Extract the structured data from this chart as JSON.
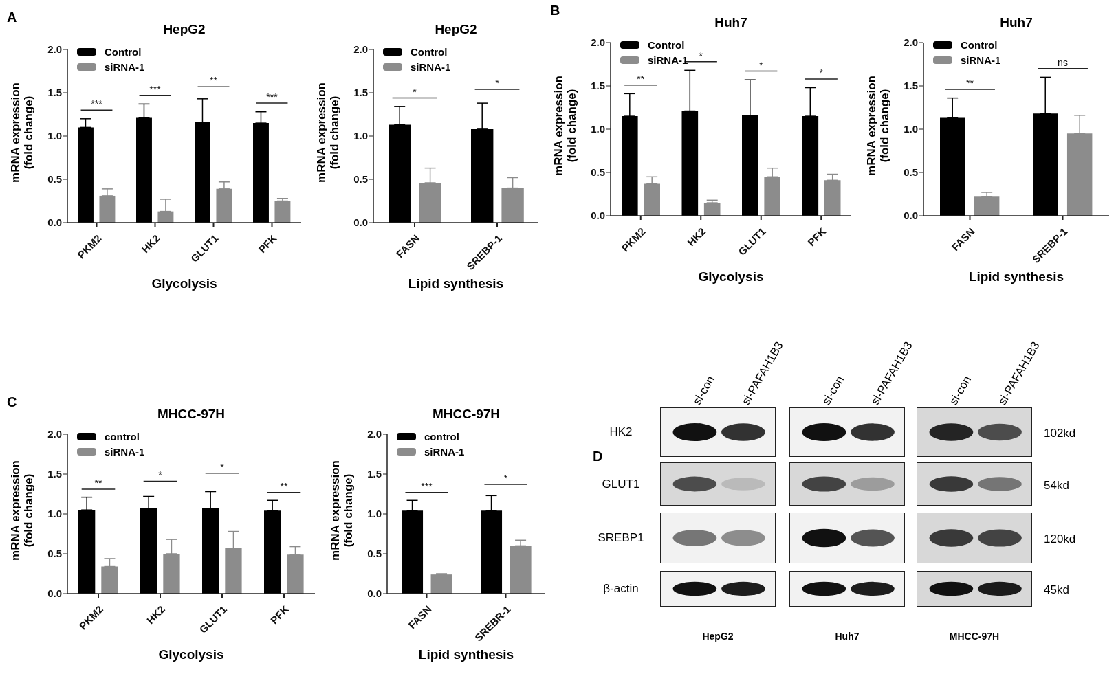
{
  "chart_data": [
    {
      "type": "bar",
      "title": "HepG2",
      "xlabel": "Glycolysis",
      "ylabel": "mRNA expression (fold change)",
      "categories": [
        "PKM2",
        "HK2",
        "GLUT1",
        "PFK"
      ],
      "series": [
        {
          "name": "Control",
          "color": "#000000",
          "values": [
            1.1,
            1.21,
            1.16,
            1.15
          ],
          "errors": [
            [
              1.1,
              1.2
            ],
            [
              1.21,
              1.37
            ],
            [
              1.16,
              1.43
            ],
            [
              1.15,
              1.28
            ]
          ]
        },
        {
          "name": "siRNA-1",
          "color": "#8c8c8c",
          "values": [
            0.31,
            0.13,
            0.39,
            0.25
          ],
          "errors": [
            [
              0.31,
              0.39
            ],
            [
              0.13,
              0.27
            ],
            [
              0.39,
              0.47
            ],
            [
              0.25,
              0.28
            ]
          ]
        }
      ],
      "ylim": [
        0,
        2
      ],
      "yticks": [
        {
          "value": 0,
          "label": "0.0"
        },
        {
          "value": 0.5,
          "label": "0.5"
        },
        {
          "value": 1,
          "label": "1.0"
        },
        {
          "value": 1.5,
          "label": "1.5"
        },
        {
          "value": 2,
          "label": "2.0"
        }
      ],
      "legend": "top left",
      "annotations": [
        "A",
        "***",
        "***",
        "**",
        "***"
      ]
    },
    {
      "type": "bar",
      "title": "HepG2",
      "xlabel": "Lipid synthesis",
      "ylabel": "mRNA expression (fold change)",
      "categories": [
        "FASN",
        "SREBP-1"
      ],
      "series": [
        {
          "name": "Control",
          "color": "#000000",
          "values": [
            1.13,
            1.08
          ],
          "errors": [
            [
              1.13,
              1.34
            ],
            [
              1.08,
              1.38
            ]
          ]
        },
        {
          "name": "siRNA-1",
          "color": "#8c8c8c",
          "values": [
            0.46,
            0.4
          ],
          "errors": [
            [
              0.46,
              0.63
            ],
            [
              0.4,
              0.52
            ]
          ]
        }
      ],
      "ylim": [
        0,
        2
      ],
      "yticks": [
        {
          "value": 0,
          "label": "0.0"
        },
        {
          "value": 0.5,
          "label": "0.5"
        },
        {
          "value": 1,
          "label": "1.0"
        },
        {
          "value": 1.5,
          "label": "1.5"
        },
        {
          "value": 2,
          "label": "2.0"
        }
      ],
      "legend": "top left",
      "annotations": [
        "*",
        "*"
      ]
    },
    {
      "type": "bar",
      "title": "Huh7",
      "xlabel": "Glycolysis",
      "ylabel": "mRNA expression (fold change)",
      "categories": [
        "PKM2",
        "HK2",
        "GLUT1",
        "PFK"
      ],
      "series": [
        {
          "name": "Control",
          "color": "#000000",
          "values": [
            1.15,
            1.21,
            1.16,
            1.15
          ],
          "errors": [
            [
              1.15,
              1.41
            ],
            [
              1.21,
              1.68
            ],
            [
              1.16,
              1.57
            ],
            [
              1.15,
              1.48
            ]
          ]
        },
        {
          "name": "siRNA-1",
          "color": "#8c8c8c",
          "values": [
            0.37,
            0.15,
            0.45,
            0.41
          ],
          "errors": [
            [
              0.37,
              0.45
            ],
            [
              0.15,
              0.18
            ],
            [
              0.45,
              0.55
            ],
            [
              0.41,
              0.48
            ]
          ]
        }
      ],
      "ylim": [
        0,
        2
      ],
      "yticks": [
        {
          "value": 0,
          "label": "0.0"
        },
        {
          "value": 0.5,
          "label": "0.5"
        },
        {
          "value": 1,
          "label": "1.0"
        },
        {
          "value": 1.5,
          "label": "1.5"
        },
        {
          "value": 2,
          "label": "2.0"
        }
      ],
      "legend": "top left",
      "annotations": [
        "B",
        "**",
        "*",
        "*",
        "*"
      ]
    },
    {
      "type": "bar",
      "title": "Huh7",
      "xlabel": "Lipid synthesis",
      "ylabel": "mRNA expression (fold change)",
      "categories": [
        "FASN",
        "SREBP-1"
      ],
      "series": [
        {
          "name": "Control",
          "color": "#000000",
          "values": [
            1.13,
            1.18
          ],
          "errors": [
            [
              1.13,
              1.36
            ],
            [
              1.18,
              1.6
            ]
          ]
        },
        {
          "name": "siRNA-1",
          "color": "#8c8c8c",
          "values": [
            0.22,
            0.95
          ],
          "errors": [
            [
              0.22,
              0.27
            ],
            [
              0.95,
              1.16
            ]
          ]
        }
      ],
      "ylim": [
        0,
        2
      ],
      "yticks": [
        {
          "value": 0,
          "label": "0.0"
        },
        {
          "value": 0.5,
          "label": "0.5"
        },
        {
          "value": 1,
          "label": "1.0"
        },
        {
          "value": 1.5,
          "label": "1.5"
        },
        {
          "value": 2,
          "label": "2.0"
        }
      ],
      "legend": "top left",
      "annotations": [
        "**",
        "ns"
      ]
    },
    {
      "type": "bar",
      "title": "MHCC-97H",
      "xlabel": "Glycolysis",
      "ylabel": "mRNA expression (fold change)",
      "categories": [
        "PKM2",
        "HK2",
        "GLUT1",
        "PFK"
      ],
      "series": [
        {
          "name": "control",
          "color": "#000000",
          "values": [
            1.05,
            1.07,
            1.07,
            1.04
          ],
          "errors": [
            [
              1.05,
              1.21
            ],
            [
              1.07,
              1.22
            ],
            [
              1.07,
              1.28
            ],
            [
              1.04,
              1.17
            ]
          ]
        },
        {
          "name": "siRNA-1",
          "color": "#8c8c8c",
          "values": [
            0.34,
            0.5,
            0.57,
            0.49
          ],
          "errors": [
            [
              0.34,
              0.44
            ],
            [
              0.5,
              0.68
            ],
            [
              0.57,
              0.78
            ],
            [
              0.49,
              0.59
            ]
          ]
        }
      ],
      "ylim": [
        0,
        2
      ],
      "yticks": [
        {
          "value": 0,
          "label": "0.0"
        },
        {
          "value": 0.5,
          "label": "0.5"
        },
        {
          "value": 1,
          "label": "1.0"
        },
        {
          "value": 1.5,
          "label": "1.5"
        },
        {
          "value": 2,
          "label": "2.0"
        }
      ],
      "legend": "top left",
      "annotations": [
        "C",
        "**",
        "*",
        "*",
        "**"
      ]
    },
    {
      "type": "bar",
      "title": "MHCC-97H",
      "xlabel": "Lipid synthesis",
      "ylabel": "mRNA expression (fold change)",
      "categories": [
        "FASN",
        "SREBR-1"
      ],
      "series": [
        {
          "name": "control",
          "color": "#000000",
          "values": [
            1.04,
            1.04
          ],
          "errors": [
            [
              1.04,
              1.17
            ],
            [
              1.04,
              1.23
            ]
          ]
        },
        {
          "name": "siRNA-1",
          "color": "#8c8c8c",
          "values": [
            0.24,
            0.6
          ],
          "errors": [
            [
              0.24,
              0.25
            ],
            [
              0.6,
              0.67
            ]
          ]
        }
      ],
      "ylim": [
        0,
        2
      ],
      "yticks": [
        {
          "value": 0,
          "label": "0.0"
        },
        {
          "value": 0.5,
          "label": "0.5"
        },
        {
          "value": 1,
          "label": "1.0"
        },
        {
          "value": 1.5,
          "label": "1.5"
        },
        {
          "value": 2,
          "label": "2.0"
        }
      ],
      "legend": "top left",
      "annotations": [
        "***",
        "*"
      ]
    },
    {
      "type": "other",
      "categories": [
        "HepG2",
        "Huh7",
        "MHCC-97H"
      ],
      "y_categories": [
        "HK2",
        "GLUT1",
        "SREBP1",
        "β-actin"
      ],
      "y2_categories": [
        "102kd",
        "54kd",
        "120kd",
        "45kd"
      ],
      "annotations": [
        "D",
        "si-con",
        "si-PAFAH1B3",
        "si-con",
        "si-PAFAH1B3",
        "si-con",
        "si-PAFAH1B3"
      ]
    }
  ]
}
